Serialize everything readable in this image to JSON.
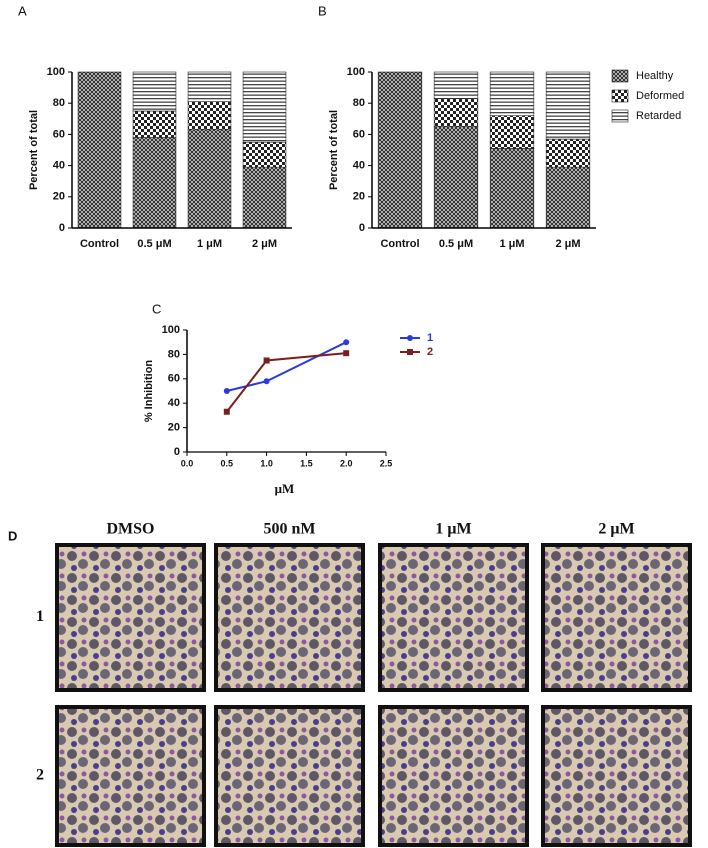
{
  "chart_data": [
    {
      "type": "stacked_bar",
      "panel": "A",
      "ylabel": "Percent of total",
      "categories": [
        "Control",
        "0.5 μM",
        "1 μM",
        "2 μM"
      ],
      "series": [
        {
          "pattern": "crosshatch",
          "color": "#333333",
          "values": [
            100,
            58,
            63,
            39
          ]
        },
        {
          "pattern": "checker",
          "color": "#222222",
          "values": [
            0,
            17,
            18,
            16
          ]
        },
        {
          "pattern": "hlines",
          "color": "#444444",
          "values": [
            0,
            25,
            19,
            45
          ]
        }
      ],
      "ylim": [
        0,
        100
      ],
      "yticks": [
        0,
        20,
        40,
        60,
        80,
        100
      ],
      "legend": false
    },
    {
      "type": "stacked_bar",
      "panel": "B",
      "ylabel": "Percent of total",
      "categories": [
        "Control",
        "0.5 μM",
        "1 μM",
        "2 μM"
      ],
      "series": [
        {
          "name": "Healthy",
          "pattern": "crosshatch",
          "color": "#333333",
          "values": [
            100,
            65,
            51,
            39
          ]
        },
        {
          "name": "Deformed",
          "pattern": "checker",
          "color": "#222222",
          "values": [
            0,
            18,
            21,
            18
          ]
        },
        {
          "name": "Retarded",
          "pattern": "hlines",
          "color": "#444444",
          "values": [
            0,
            17,
            28,
            43
          ]
        }
      ],
      "ylim": [
        0,
        100
      ],
      "yticks": [
        0,
        20,
        40,
        60,
        80,
        100
      ],
      "legend": true
    },
    {
      "type": "line",
      "panel": "C",
      "xlabel": "μM",
      "ylabel": "% Inhibition",
      "x": [
        0.5,
        1,
        2
      ],
      "series": [
        {
          "name": "1",
          "color": "#2a3adf",
          "marker": "circle",
          "values": [
            50,
            58,
            90
          ]
        },
        {
          "name": "2",
          "color": "#7a1f1f",
          "marker": "square",
          "values": [
            33,
            75,
            81
          ]
        }
      ],
      "xlim": [
        0,
        2.5
      ],
      "xticks": [
        {
          "value": 0,
          "label": "0.0"
        },
        {
          "value": 0.5,
          "label": "0.5"
        },
        {
          "value": 1,
          "label": "1.0"
        },
        {
          "value": 1.5,
          "label": "1.5"
        },
        {
          "value": 2,
          "label": "2.0"
        },
        {
          "value": 2.5,
          "label": "2.5"
        }
      ],
      "ylim": [
        0,
        100
      ],
      "yticks": [
        0,
        20,
        40,
        60,
        80,
        100
      ],
      "legend": true
    }
  ],
  "panel_d": {
    "label": "D",
    "columns": [
      "DMSO",
      "500 nM",
      "1 μM",
      "2 μM"
    ],
    "rows": [
      "1",
      "2"
    ]
  }
}
